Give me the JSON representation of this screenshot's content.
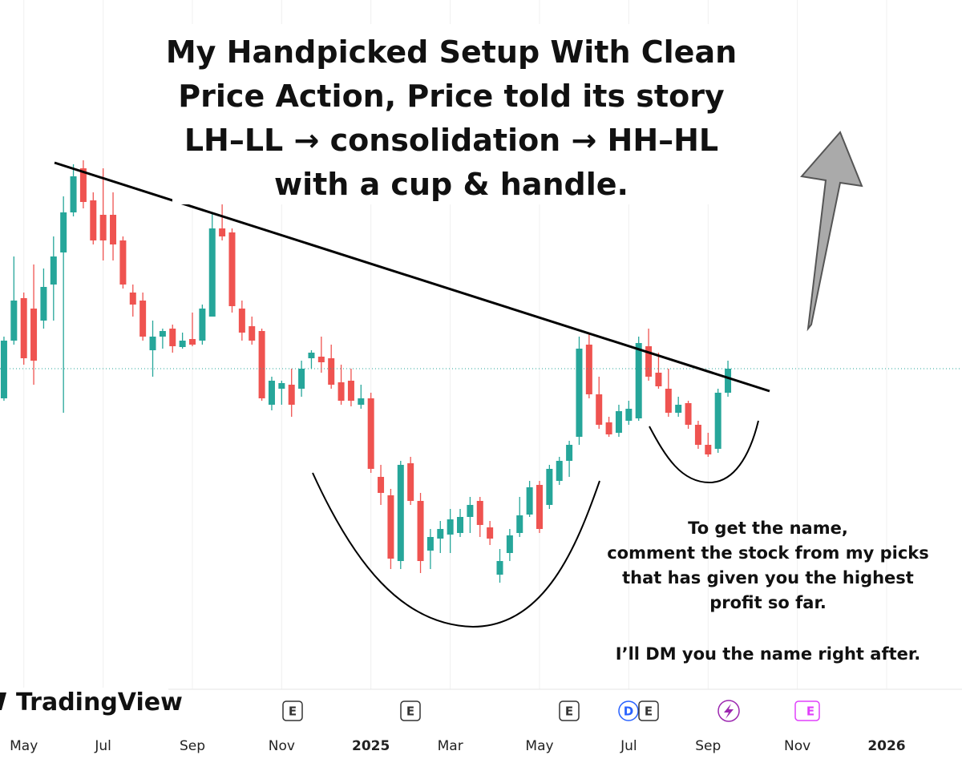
{
  "chart_data": {
    "type": "candlestick",
    "title_lines": [
      "My Handpicked Setup With Clean",
      "Price Action, Price told its story",
      "LH–LL → consolidation → HH–HL",
      "with a cup & handle."
    ],
    "note_lines": [
      "To get the name,",
      "comment the stock from my picks",
      "that has given you the highest",
      "profit so far.",
      "I’ll DM you the name right after."
    ],
    "brand": "TradingView",
    "up_color": "#26a69a",
    "down_color": "#ef5350",
    "xlim": [
      -0.4,
      96.6
    ],
    "ylim": [
      40,
      900
    ],
    "xticks": [
      {
        "value": 2,
        "label": "May"
      },
      {
        "value": 10,
        "label": "Jul"
      },
      {
        "value": 19,
        "label": "Sep"
      },
      {
        "value": 28,
        "label": "Nov"
      },
      {
        "value": 37,
        "label": "2025"
      },
      {
        "value": 45,
        "label": "Mar"
      },
      {
        "value": 54,
        "label": "May"
      },
      {
        "value": 63,
        "label": "Jul"
      },
      {
        "value": 71,
        "label": "Sep"
      },
      {
        "value": 80,
        "label": "Nov"
      },
      {
        "value": 89,
        "label": "2026"
      }
    ],
    "events": [
      "E",
      "E",
      "E",
      "D",
      "E",
      "E"
    ],
    "open": [
      403,
      475,
      528,
      515,
      500,
      545,
      585,
      635,
      690,
      650,
      632,
      632,
      600,
      535,
      525,
      463,
      480,
      490,
      467,
      477,
      475,
      505,
      615,
      610,
      515,
      493,
      487,
      395,
      415,
      420,
      415,
      453,
      455,
      453,
      423,
      425,
      395,
      403,
      305,
      282,
      200,
      322,
      275,
      213,
      228,
      233,
      235,
      255,
      275,
      242,
      183,
      210,
      235,
      258,
      295,
      270,
      300,
      325,
      355,
      470,
      408,
      373,
      360,
      375,
      378,
      468,
      435,
      415,
      385,
      397,
      370,
      345,
      340,
      410
    ],
    "high": [
      480,
      580,
      535,
      570,
      565,
      605,
      655,
      695,
      700,
      660,
      690,
      660,
      605,
      545,
      535,
      500,
      490,
      495,
      485,
      510,
      520,
      635,
      655,
      615,
      525,
      505,
      490,
      430,
      425,
      440,
      450,
      463,
      480,
      470,
      445,
      440,
      420,
      410,
      320,
      290,
      325,
      330,
      285,
      240,
      250,
      265,
      265,
      280,
      280,
      250,
      215,
      240,
      280,
      300,
      300,
      320,
      330,
      350,
      480,
      485,
      430,
      380,
      395,
      400,
      480,
      490,
      460,
      440,
      405,
      400,
      375,
      360,
      415,
      450
    ],
    "low": [
      400,
      470,
      445,
      420,
      490,
      500,
      385,
      630,
      640,
      595,
      575,
      575,
      540,
      505,
      475,
      430,
      465,
      460,
      465,
      468,
      470,
      505,
      600,
      510,
      475,
      470,
      400,
      388,
      395,
      380,
      405,
      440,
      435,
      415,
      395,
      393,
      390,
      310,
      270,
      190,
      190,
      270,
      185,
      190,
      210,
      210,
      230,
      235,
      230,
      220,
      173,
      200,
      230,
      255,
      235,
      265,
      295,
      305,
      345,
      403,
      365,
      355,
      355,
      370,
      375,
      425,
      415,
      380,
      380,
      365,
      340,
      330,
      335,
      405
    ],
    "close": [
      475,
      525,
      453,
      450,
      542,
      580,
      635,
      680,
      648,
      600,
      600,
      595,
      545,
      520,
      480,
      480,
      487,
      468,
      475,
      470,
      515,
      615,
      605,
      518,
      485,
      475,
      403,
      425,
      422,
      395,
      440,
      460,
      448,
      420,
      400,
      400,
      403,
      315,
      285,
      203,
      320,
      275,
      200,
      230,
      240,
      252,
      255,
      270,
      245,
      228,
      200,
      232,
      257,
      292,
      240,
      315,
      325,
      345,
      465,
      408,
      370,
      358,
      387,
      390,
      472,
      430,
      418,
      385,
      395,
      370,
      345,
      333,
      410,
      440
    ]
  }
}
